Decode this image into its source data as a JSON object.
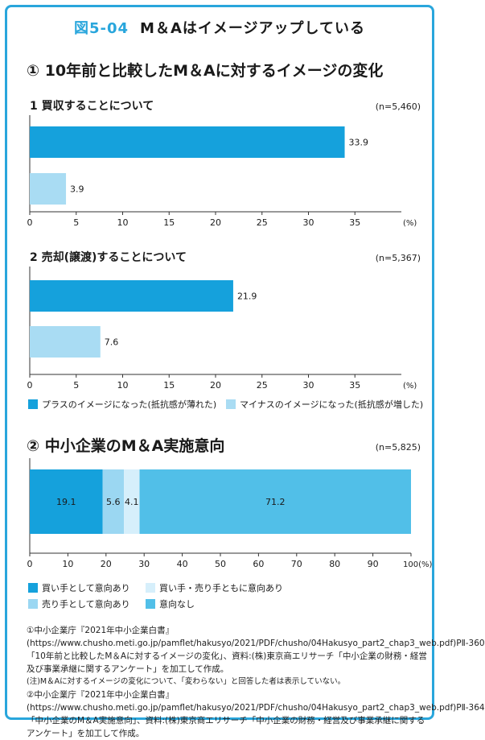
{
  "figure": {
    "id": "図5-04",
    "title": "M＆Aはイメージアップしている"
  },
  "section1": {
    "title": "① 10年前と比較したM＆Aに対するイメージの変化"
  },
  "section2": {
    "title": "② 中小企業のM＆A実施意向"
  },
  "colors": {
    "frame": "#29a6dc",
    "plus": "#15a1dc",
    "minus": "#a9dcf3",
    "intent_sell": "#9bd7f2",
    "intent_both": "#d6effb",
    "intent_none": "#51bfe8"
  },
  "chart_data": [
    {
      "type": "bar",
      "orientation": "horizontal",
      "title": "1 買収することについて",
      "n_label": "(n=5,460)",
      "unit": "(%)",
      "xlim": [
        0,
        40
      ],
      "ticks": [
        "0",
        "5",
        "10",
        "15",
        "20",
        "25",
        "30",
        "35"
      ],
      "series": [
        {
          "name": "プラスのイメージになった(抵抗感が薄れた)",
          "value": 33.9,
          "label": "33.9"
        },
        {
          "name": "マイナスのイメージになった(抵抗感が増した)",
          "value": 3.9,
          "label": "3.9"
        }
      ]
    },
    {
      "type": "bar",
      "orientation": "horizontal",
      "title": "2 売却(譲渡)することについて",
      "n_label": "(n=5,367)",
      "unit": "(%)",
      "xlim": [
        0,
        40
      ],
      "ticks": [
        "0",
        "5",
        "10",
        "15",
        "20",
        "25",
        "30",
        "35"
      ],
      "series": [
        {
          "name": "プラスのイメージになった(抵抗感が薄れた)",
          "value": 21.9,
          "label": "21.9"
        },
        {
          "name": "マイナスのイメージになった(抵抗感が増した)",
          "value": 7.6,
          "label": "7.6"
        }
      ]
    },
    {
      "type": "bar",
      "orientation": "horizontal",
      "stacked": true,
      "n_label": "(n=5,825)",
      "unit": "100(%)",
      "xlim": [
        0,
        100
      ],
      "ticks": [
        "0",
        "10",
        "20",
        "30",
        "40",
        "50",
        "60",
        "70",
        "80",
        "90"
      ],
      "series": [
        {
          "name": "買い手として意向あり",
          "value": 19.1,
          "label": "19.1"
        },
        {
          "name": "売り手として意向あり",
          "value": 5.6,
          "label": "5.6"
        },
        {
          "name": "買い手・売り手ともに意向あり",
          "value": 4.1,
          "label": "4.1"
        },
        {
          "name": "意向なし",
          "value": 71.2,
          "label": "71.2"
        }
      ]
    }
  ],
  "legend1": [
    {
      "label": "プラスのイメージになった(抵抗感が薄れた)"
    },
    {
      "label": "マイナスのイメージになった(抵抗感が増した)"
    }
  ],
  "legend2": [
    {
      "label": "買い手として意向あり"
    },
    {
      "label": "買い手・売り手ともに意向あり"
    },
    {
      "label": "売り手として意向あり"
    },
    {
      "label": "意向なし"
    }
  ],
  "notes": {
    "n1": "①中小企業庁『2021年中小企業白書』(https://www.chusho.meti.go.jp/pamflet/hakusyo/2021/PDF/chusho/04Hakusyo_part2_chap3_web.pdf)PⅡ-360「10年前と比較したM＆Aに対するイメージの変化」、資料:(株)東京商エリサーチ「中小企業の財務・経営及び事業承継に関するアンケート」を加工して作成。",
    "n2": "(注)M＆Aに対するイメージの変化について、「変わらない」と回答した者は表示していない。",
    "n3": "②中小企業庁『2021年中小企業白書』(https://www.chusho.meti.go.jp/pamflet/hakusyo/2021/PDF/chusho/04Hakusyo_part2_chap3_web.pdf)PⅡ-364「中小企業のM＆A実施意向」、資料:(株)東京商エリサーチ「中小企業の財務・経営及び事業承継に関するアンケート」を加工して作成。"
  }
}
